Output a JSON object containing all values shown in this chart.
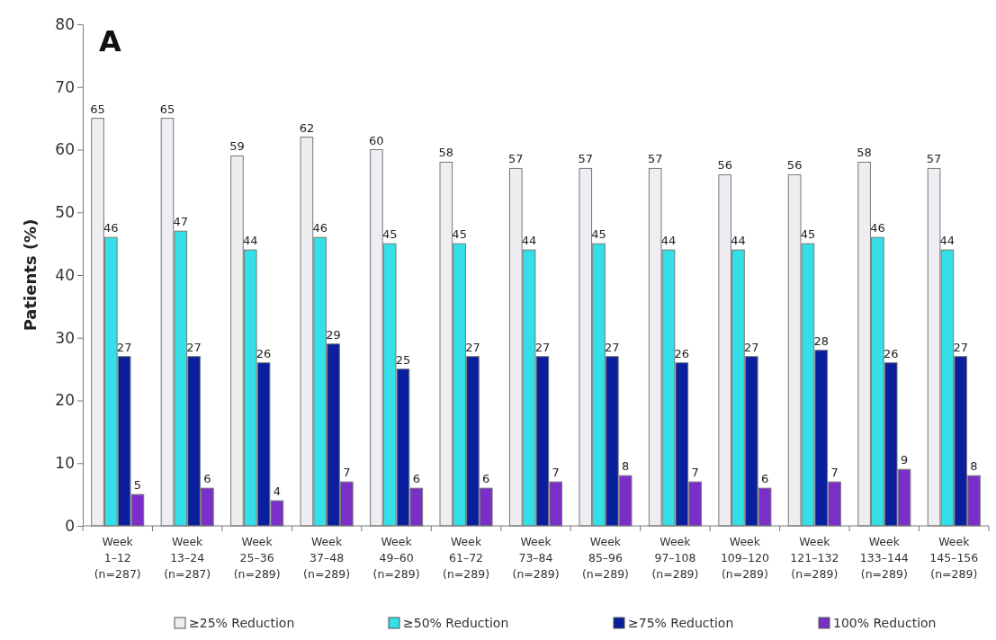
{
  "chart_data": {
    "type": "bar",
    "title": "A",
    "ylabel": "Patients (%)",
    "categories": [
      "Week\n1–12\n(n=287)",
      "Week\n13–24\n(n=287)",
      "Week\n25–36\n(n=289)",
      "Week\n37–48\n(n=289)",
      "Week\n49–60\n(n=289)",
      "Week\n61–72\n(n=289)",
      "Week\n73–84\n(n=289)",
      "Week\n85–96\n(n=289)",
      "Week\n97–108\n(n=289)",
      "Week\n109–120\n(n=289)",
      "Week\n121–132\n(n=289)",
      "Week\n133–144\n(n=289)",
      "Week\n145–156\n(n=289)"
    ],
    "series": [
      {
        "name": "≥25% Reduction",
        "color": "#eeeef2",
        "values": [
          65,
          65,
          59,
          62,
          60,
          58,
          57,
          57,
          57,
          56,
          56,
          58,
          57
        ]
      },
      {
        "name": "≥50% Reduction",
        "color": "#33e0e8",
        "values": [
          46,
          47,
          44,
          46,
          45,
          45,
          44,
          45,
          44,
          44,
          45,
          46,
          44
        ]
      },
      {
        "name": "≥75% Reduction",
        "color": "#0a1f9e",
        "values": [
          27,
          27,
          26,
          29,
          25,
          27,
          27,
          27,
          26,
          27,
          28,
          26,
          27
        ]
      },
      {
        "name": "100% Reduction",
        "color": "#7a2fc8",
        "values": [
          5,
          6,
          4,
          7,
          6,
          6,
          7,
          8,
          7,
          6,
          7,
          9,
          8
        ]
      }
    ],
    "ylim": [
      0,
      80
    ],
    "yticks": [
      0,
      10,
      20,
      30,
      40,
      50,
      60,
      70,
      80
    ],
    "grid": false,
    "legend": "bottom",
    "data_labels": true
  }
}
